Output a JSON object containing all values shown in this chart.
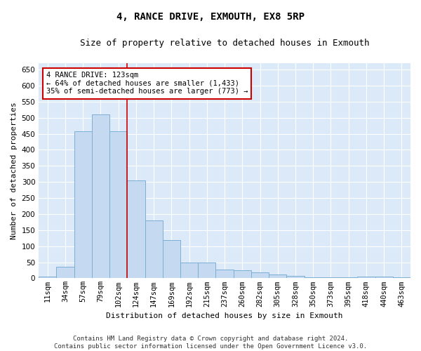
{
  "title": "4, RANCE DRIVE, EXMOUTH, EX8 5RP",
  "subtitle": "Size of property relative to detached houses in Exmouth",
  "xlabel": "Distribution of detached houses by size in Exmouth",
  "ylabel": "Number of detached properties",
  "categories": [
    "11sqm",
    "34sqm",
    "57sqm",
    "79sqm",
    "102sqm",
    "124sqm",
    "147sqm",
    "169sqm",
    "192sqm",
    "215sqm",
    "237sqm",
    "260sqm",
    "282sqm",
    "305sqm",
    "328sqm",
    "350sqm",
    "373sqm",
    "395sqm",
    "418sqm",
    "440sqm",
    "463sqm"
  ],
  "values": [
    6,
    36,
    457,
    511,
    457,
    305,
    180,
    118,
    50,
    50,
    28,
    25,
    18,
    12,
    7,
    4,
    3,
    2,
    6,
    6,
    3
  ],
  "bar_color": "#c5d9f1",
  "bar_edge_color": "#7bafd4",
  "ylim": [
    0,
    670
  ],
  "yticks": [
    0,
    50,
    100,
    150,
    200,
    250,
    300,
    350,
    400,
    450,
    500,
    550,
    600,
    650
  ],
  "vline_color": "#cc0000",
  "annotation_text": "4 RANCE DRIVE: 123sqm\n← 64% of detached houses are smaller (1,433)\n35% of semi-detached houses are larger (773) →",
  "annotation_box_facecolor": "#ffffff",
  "annotation_box_edge_color": "#cc0000",
  "footer_line1": "Contains HM Land Registry data © Crown copyright and database right 2024.",
  "footer_line2": "Contains public sector information licensed under the Open Government Licence v3.0.",
  "plot_bg_color": "#dce9f8",
  "grid_color": "#ffffff",
  "fig_bg_color": "#ffffff",
  "title_fontsize": 10,
  "subtitle_fontsize": 9,
  "axis_label_fontsize": 8,
  "tick_fontsize": 7.5,
  "annotation_fontsize": 7.5,
  "footer_fontsize": 6.5
}
